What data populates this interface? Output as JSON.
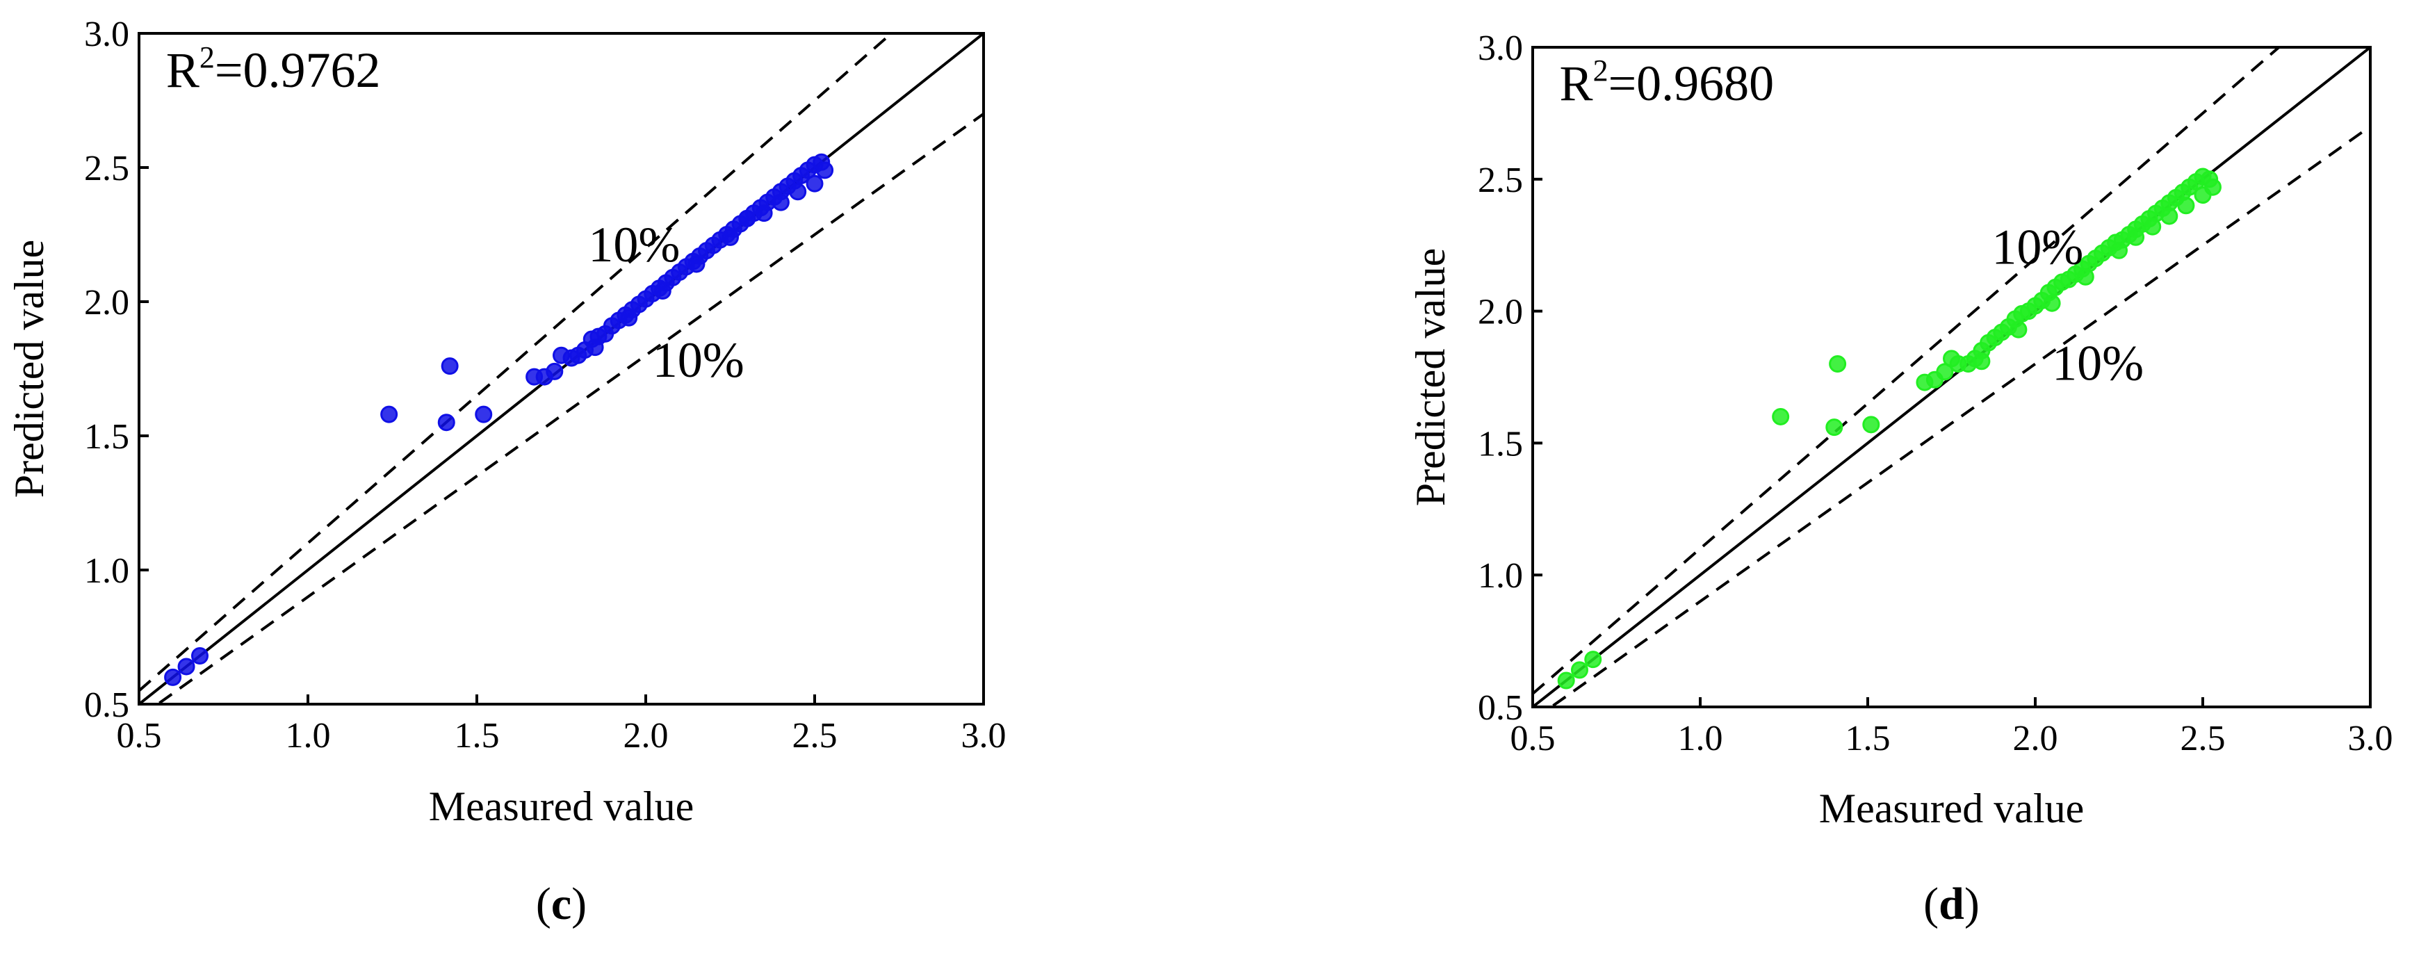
{
  "chart_data": [
    {
      "type": "scatter",
      "panel_label": "(c)",
      "panel_letter": "c",
      "xlabel": "Measured value",
      "ylabel": "Predicted value",
      "xlim": [
        0.5,
        3.0
      ],
      "ylim": [
        0.5,
        3.0
      ],
      "x_ticks": [
        "0.5",
        "1.0",
        "1.5",
        "2.0",
        "2.5",
        "3.0"
      ],
      "y_ticks": [
        "0.5",
        "1.0",
        "1.5",
        "2.0",
        "2.5",
        "3.0"
      ],
      "r2_prefix": "R",
      "r2_exponent": "2",
      "r2_value": "=0.9762",
      "band_labels": [
        "10%",
        "10%"
      ],
      "band_percent": 10,
      "reference_lines": [
        "y = x",
        "y = 1.1x",
        "y = 0.9x"
      ],
      "grid": false,
      "color": "#1010e6",
      "x": [
        0.6,
        0.64,
        0.68,
        1.24,
        1.41,
        1.42,
        1.52,
        1.67,
        1.7,
        1.73,
        1.75,
        1.78,
        1.8,
        1.82,
        1.84,
        1.86,
        1.88,
        1.9,
        1.92,
        1.94,
        1.96,
        1.98,
        2.0,
        2.02,
        2.04,
        2.06,
        2.08,
        2.1,
        2.12,
        2.14,
        2.16,
        2.18,
        2.2,
        2.22,
        2.24,
        2.26,
        2.28,
        2.3,
        2.32,
        2.34,
        2.36,
        2.38,
        2.4,
        2.42,
        2.44,
        2.46,
        2.48,
        2.5,
        2.52,
        1.85,
        1.95,
        2.05,
        2.15,
        2.25,
        2.35,
        2.45,
        2.5,
        2.53,
        2.4,
        2.3
      ],
      "y": [
        0.6,
        0.64,
        0.68,
        1.58,
        1.55,
        1.76,
        1.58,
        1.72,
        1.72,
        1.74,
        1.8,
        1.79,
        1.8,
        1.82,
        1.86,
        1.87,
        1.88,
        1.91,
        1.93,
        1.95,
        1.97,
        1.99,
        2.01,
        2.03,
        2.05,
        2.07,
        2.09,
        2.11,
        2.13,
        2.15,
        2.17,
        2.19,
        2.21,
        2.23,
        2.25,
        2.27,
        2.29,
        2.31,
        2.33,
        2.35,
        2.37,
        2.39,
        2.41,
        2.43,
        2.45,
        2.47,
        2.49,
        2.51,
        2.52,
        1.83,
        1.94,
        2.04,
        2.14,
        2.24,
        2.33,
        2.41,
        2.44,
        2.49,
        2.37,
        2.31
      ]
    },
    {
      "type": "scatter",
      "panel_label": "(d)",
      "panel_letter": "d",
      "xlabel": "Measured value",
      "ylabel": "Predicted value",
      "xlim": [
        0.5,
        3.0
      ],
      "ylim": [
        0.5,
        3.0
      ],
      "x_ticks": [
        "0.5",
        "1.0",
        "1.5",
        "2.0",
        "2.5",
        "3.0"
      ],
      "y_ticks": [
        "0.5",
        "1.0",
        "1.5",
        "2.0",
        "2.5",
        "3.0"
      ],
      "r2_prefix": "R",
      "r2_exponent": "2",
      "r2_value": "=0.9680",
      "band_labels": [
        "10%",
        "10%"
      ],
      "band_percent": 10,
      "reference_lines": [
        "y = x",
        "y = 1.1x",
        "y = 0.9x"
      ],
      "grid": false,
      "color": "#22ee22",
      "x": [
        0.6,
        0.64,
        0.68,
        1.24,
        1.4,
        1.41,
        1.51,
        1.67,
        1.7,
        1.73,
        1.75,
        1.77,
        1.8,
        1.82,
        1.84,
        1.86,
        1.88,
        1.9,
        1.92,
        1.94,
        1.96,
        1.98,
        2.0,
        2.02,
        2.04,
        2.06,
        2.08,
        2.1,
        2.12,
        2.14,
        2.16,
        2.18,
        2.2,
        2.22,
        2.24,
        2.26,
        2.28,
        2.3,
        2.32,
        2.34,
        2.36,
        2.38,
        2.4,
        2.42,
        2.44,
        2.46,
        2.48,
        2.5,
        2.52,
        1.84,
        1.95,
        2.05,
        2.15,
        2.25,
        2.35,
        2.45,
        2.5,
        2.53,
        2.4,
        2.3
      ],
      "y": [
        0.6,
        0.64,
        0.68,
        1.6,
        1.56,
        1.8,
        1.57,
        1.73,
        1.74,
        1.77,
        1.82,
        1.8,
        1.8,
        1.82,
        1.85,
        1.88,
        1.9,
        1.92,
        1.94,
        1.97,
        1.99,
        2.0,
        2.02,
        2.04,
        2.07,
        2.09,
        2.11,
        2.12,
        2.14,
        2.16,
        2.18,
        2.2,
        2.22,
        2.24,
        2.26,
        2.27,
        2.29,
        2.31,
        2.33,
        2.35,
        2.37,
        2.39,
        2.41,
        2.43,
        2.45,
        2.47,
        2.49,
        2.51,
        2.5,
        1.81,
        1.93,
        2.03,
        2.13,
        2.23,
        2.32,
        2.4,
        2.44,
        2.47,
        2.36,
        2.28
      ]
    }
  ]
}
